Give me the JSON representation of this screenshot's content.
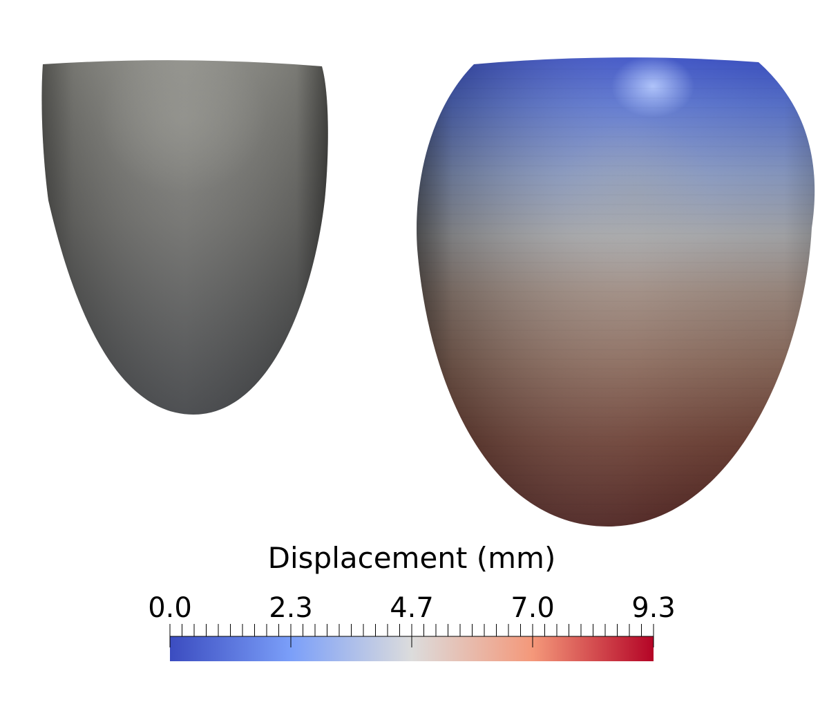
{
  "colorbar": {
    "title": "Displacement (mm)",
    "min": 0.0,
    "max": 9.3,
    "tick_labels": [
      "0.0",
      "2.3",
      "4.7",
      "7.0",
      "9.3"
    ],
    "colormap": "cool-to-warm",
    "color_low": "#3b4cc0",
    "color_mid": "#dddddd",
    "color_high": "#b40426"
  },
  "reference_shape": {
    "color": "#7f7f7a"
  },
  "deformed_shape": {
    "displacement_base": 0.0,
    "displacement_apex": 9.3
  }
}
